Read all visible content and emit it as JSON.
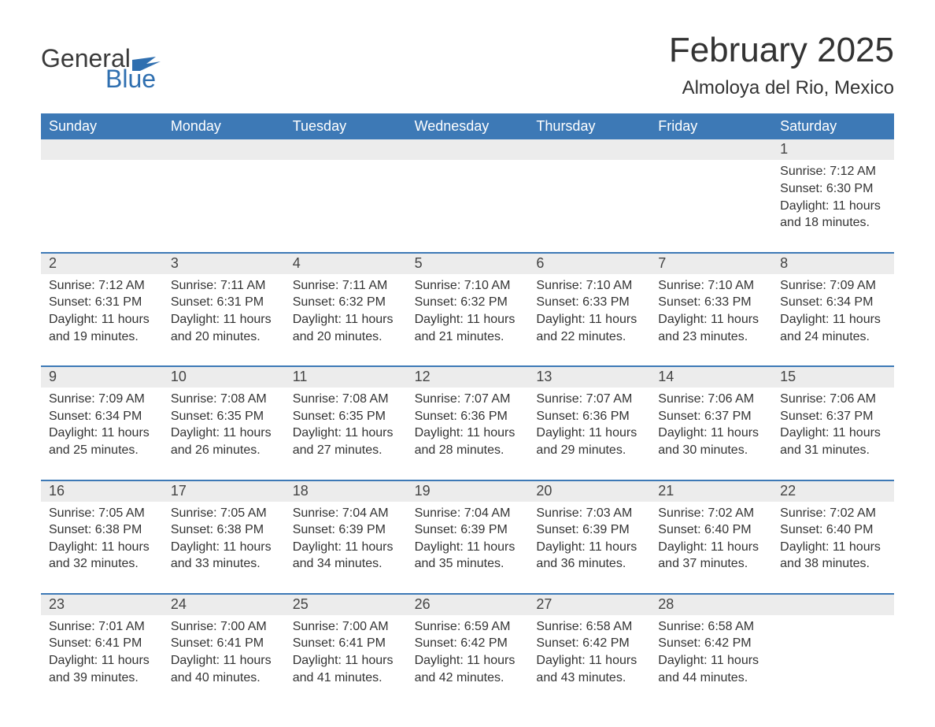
{
  "logo": {
    "text1": "General",
    "text2": "Blue",
    "flag_color": "#2f6fb0"
  },
  "title": {
    "month": "February 2025",
    "location": "Almoloya del Rio, Mexico"
  },
  "colors": {
    "header_bg": "#3d79b6",
    "header_text": "#ffffff",
    "daynum_bg": "#ececec",
    "text": "#333333",
    "week_border": "#3d79b6",
    "page_bg": "#ffffff"
  },
  "typography": {
    "month_title_fontsize": 44,
    "location_fontsize": 24,
    "weekday_fontsize": 18,
    "daynum_fontsize": 18,
    "content_fontsize": 16
  },
  "weekdays": [
    "Sunday",
    "Monday",
    "Tuesday",
    "Wednesday",
    "Thursday",
    "Friday",
    "Saturday"
  ],
  "weeks": [
    [
      null,
      null,
      null,
      null,
      null,
      null,
      {
        "day": "1",
        "sunrise": "7:12 AM",
        "sunset": "6:30 PM",
        "daylight": "11 hours and 18 minutes."
      }
    ],
    [
      {
        "day": "2",
        "sunrise": "7:12 AM",
        "sunset": "6:31 PM",
        "daylight": "11 hours and 19 minutes."
      },
      {
        "day": "3",
        "sunrise": "7:11 AM",
        "sunset": "6:31 PM",
        "daylight": "11 hours and 20 minutes."
      },
      {
        "day": "4",
        "sunrise": "7:11 AM",
        "sunset": "6:32 PM",
        "daylight": "11 hours and 20 minutes."
      },
      {
        "day": "5",
        "sunrise": "7:10 AM",
        "sunset": "6:32 PM",
        "daylight": "11 hours and 21 minutes."
      },
      {
        "day": "6",
        "sunrise": "7:10 AM",
        "sunset": "6:33 PM",
        "daylight": "11 hours and 22 minutes."
      },
      {
        "day": "7",
        "sunrise": "7:10 AM",
        "sunset": "6:33 PM",
        "daylight": "11 hours and 23 minutes."
      },
      {
        "day": "8",
        "sunrise": "7:09 AM",
        "sunset": "6:34 PM",
        "daylight": "11 hours and 24 minutes."
      }
    ],
    [
      {
        "day": "9",
        "sunrise": "7:09 AM",
        "sunset": "6:34 PM",
        "daylight": "11 hours and 25 minutes."
      },
      {
        "day": "10",
        "sunrise": "7:08 AM",
        "sunset": "6:35 PM",
        "daylight": "11 hours and 26 minutes."
      },
      {
        "day": "11",
        "sunrise": "7:08 AM",
        "sunset": "6:35 PM",
        "daylight": "11 hours and 27 minutes."
      },
      {
        "day": "12",
        "sunrise": "7:07 AM",
        "sunset": "6:36 PM",
        "daylight": "11 hours and 28 minutes."
      },
      {
        "day": "13",
        "sunrise": "7:07 AM",
        "sunset": "6:36 PM",
        "daylight": "11 hours and 29 minutes."
      },
      {
        "day": "14",
        "sunrise": "7:06 AM",
        "sunset": "6:37 PM",
        "daylight": "11 hours and 30 minutes."
      },
      {
        "day": "15",
        "sunrise": "7:06 AM",
        "sunset": "6:37 PM",
        "daylight": "11 hours and 31 minutes."
      }
    ],
    [
      {
        "day": "16",
        "sunrise": "7:05 AM",
        "sunset": "6:38 PM",
        "daylight": "11 hours and 32 minutes."
      },
      {
        "day": "17",
        "sunrise": "7:05 AM",
        "sunset": "6:38 PM",
        "daylight": "11 hours and 33 minutes."
      },
      {
        "day": "18",
        "sunrise": "7:04 AM",
        "sunset": "6:39 PM",
        "daylight": "11 hours and 34 minutes."
      },
      {
        "day": "19",
        "sunrise": "7:04 AM",
        "sunset": "6:39 PM",
        "daylight": "11 hours and 35 minutes."
      },
      {
        "day": "20",
        "sunrise": "7:03 AM",
        "sunset": "6:39 PM",
        "daylight": "11 hours and 36 minutes."
      },
      {
        "day": "21",
        "sunrise": "7:02 AM",
        "sunset": "6:40 PM",
        "daylight": "11 hours and 37 minutes."
      },
      {
        "day": "22",
        "sunrise": "7:02 AM",
        "sunset": "6:40 PM",
        "daylight": "11 hours and 38 minutes."
      }
    ],
    [
      {
        "day": "23",
        "sunrise": "7:01 AM",
        "sunset": "6:41 PM",
        "daylight": "11 hours and 39 minutes."
      },
      {
        "day": "24",
        "sunrise": "7:00 AM",
        "sunset": "6:41 PM",
        "daylight": "11 hours and 40 minutes."
      },
      {
        "day": "25",
        "sunrise": "7:00 AM",
        "sunset": "6:41 PM",
        "daylight": "11 hours and 41 minutes."
      },
      {
        "day": "26",
        "sunrise": "6:59 AM",
        "sunset": "6:42 PM",
        "daylight": "11 hours and 42 minutes."
      },
      {
        "day": "27",
        "sunrise": "6:58 AM",
        "sunset": "6:42 PM",
        "daylight": "11 hours and 43 minutes."
      },
      {
        "day": "28",
        "sunrise": "6:58 AM",
        "sunset": "6:42 PM",
        "daylight": "11 hours and 44 minutes."
      },
      null
    ]
  ],
  "labels": {
    "sunrise": "Sunrise:",
    "sunset": "Sunset:",
    "daylight": "Daylight:"
  }
}
